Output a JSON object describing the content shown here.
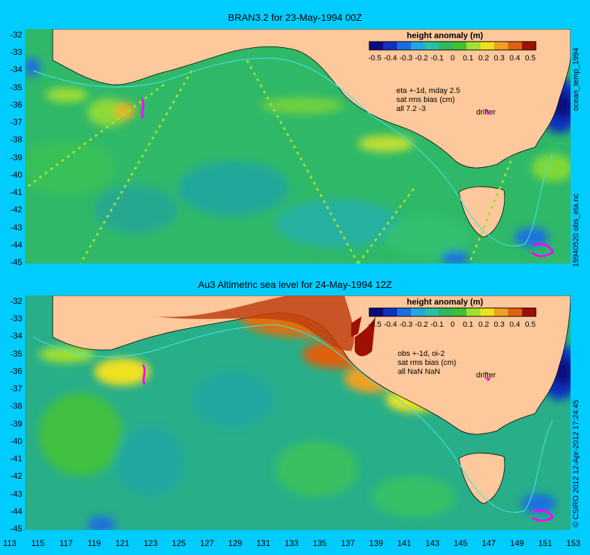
{
  "panels": [
    {
      "title": "BRAN3.2 for 23-May-1994 00Z",
      "colorbar_title": "height anomaly (m)",
      "info_lines": [
        "eta +-1d, mday 2.5",
        "sat rms bias (cm)",
        "all 7.2 -3"
      ],
      "drifter_label": "drifter",
      "side_label": "ocean_temp_1994",
      "side_label_lower": "19940520 obs_eta.nc"
    },
    {
      "title": "Au3 Altimetric sea level  for 24-May-1994 12Z",
      "colorbar_title": "height anomaly (m)",
      "info_lines": [
        "obs +-1d, oi-2",
        "sat rms bias (cm)",
        "all NaN NaN"
      ],
      "drifter_label": "drifter",
      "side_label": "© CSIRO 2012  12-Apr-2012 17:24:45"
    }
  ],
  "colorbar_ticks": [
    "-0.5",
    "-0.4",
    "-0.3",
    "-0.2",
    "-0.1",
    "0",
    "0.1",
    "0.2",
    "0.3",
    "0.4",
    "0.5"
  ],
  "colorbar_colors": [
    "#0a0a80",
    "#1030c0",
    "#1a6fe0",
    "#22a8e0",
    "#27c0a8",
    "#30b860",
    "#40c030",
    "#a0e030",
    "#f0e020",
    "#f0a020",
    "#e06010",
    "#a01000"
  ],
  "lat_ticks": [
    "-32",
    "-33",
    "-34",
    "-35",
    "-36",
    "-37",
    "-38",
    "-39",
    "-40",
    "-41",
    "-42",
    "-43",
    "-44",
    "-45"
  ],
  "lon_ticks": [
    "113",
    "115",
    "117",
    "119",
    "121",
    "123",
    "125",
    "127",
    "129",
    "131",
    "133",
    "135",
    "137",
    "139",
    "141",
    "143",
    "145",
    "147",
    "149",
    "151",
    "153"
  ],
  "colors": {
    "background": "#00ccff",
    "land": "#fdc89b",
    "ocean_base": "#30b860",
    "drifter": "#ff00ff",
    "current_line": "#40e0e0"
  }
}
